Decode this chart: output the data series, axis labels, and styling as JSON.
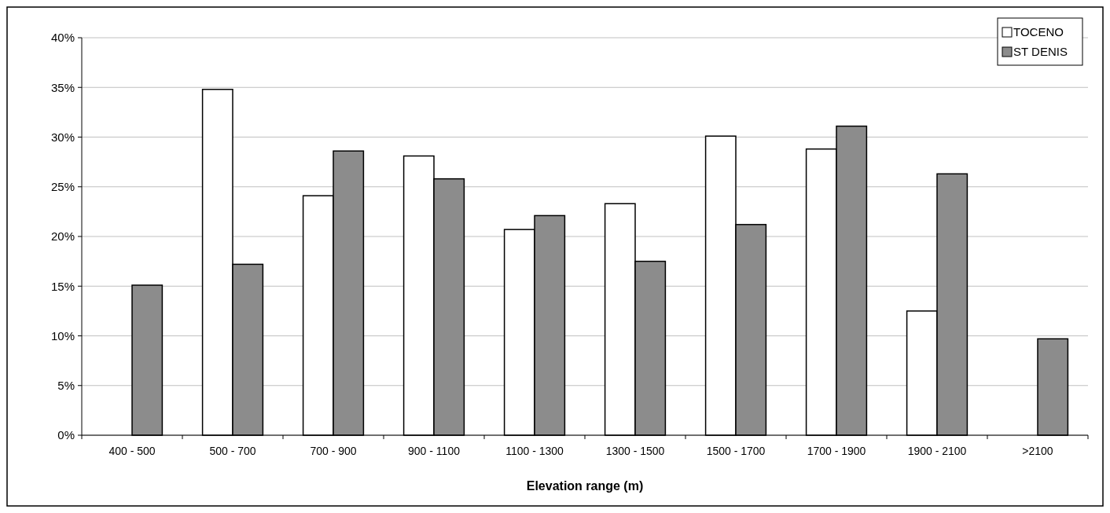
{
  "chart_data": {
    "type": "bar",
    "xlabel": "Elevation range (m)",
    "categories": [
      "400 - 500",
      "500 - 700",
      "700 - 900",
      "900 - 1100",
      "1100 - 1300",
      "1300 - 1500",
      "1500 - 1700",
      "1700 - 1900",
      "1900 - 2100",
      ">2100"
    ],
    "series": [
      {
        "name": "TOCENO",
        "color": "#ffffff",
        "values": [
          null,
          34.8,
          24.1,
          28.1,
          20.7,
          23.3,
          30.1,
          28.8,
          12.5,
          null
        ]
      },
      {
        "name": "ST DENIS",
        "color": "#8c8c8c",
        "values": [
          15.1,
          17.2,
          28.6,
          25.8,
          22.1,
          17.5,
          21.2,
          31.1,
          26.3,
          9.7
        ]
      }
    ],
    "ylim": [
      0,
      40
    ],
    "yticks": [
      {
        "value": 0,
        "label": "0%"
      },
      {
        "value": 5,
        "label": "5%"
      },
      {
        "value": 10,
        "label": "10%"
      },
      {
        "value": 15,
        "label": "15%"
      },
      {
        "value": 20,
        "label": "20%"
      },
      {
        "value": 25,
        "label": "25%"
      },
      {
        "value": 30,
        "label": "30%"
      },
      {
        "value": 35,
        "label": "35%"
      },
      {
        "value": 40,
        "label": "40%"
      }
    ],
    "grid": "y",
    "legend": "top right"
  }
}
